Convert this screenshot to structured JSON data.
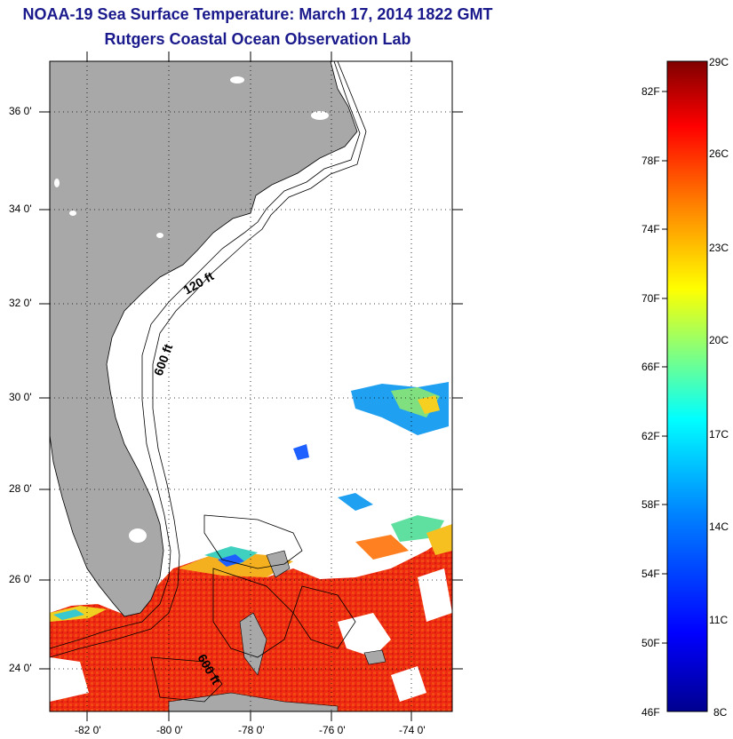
{
  "title": {
    "line1": "NOAA-19 Sea Surface Temperature:  March 17, 2014 1822 GMT",
    "line2": "Rutgers Coastal Ocean Observation Lab"
  },
  "map": {
    "lat_labels": [
      "36 0'",
      "34 0'",
      "32 0'",
      "30 0'",
      "28 0'",
      "26 0'",
      "24 0'"
    ],
    "lon_labels": [
      "-82 0'",
      "-80 0'",
      "-78 0'",
      "-76 0'",
      "-74 0'"
    ],
    "contour_labels": [
      "120 ft",
      "600 ft",
      "600 ft"
    ],
    "land_color": "#a8a8a8",
    "grid": "dotted"
  },
  "colorbar": {
    "f_labels": [
      "82F",
      "78F",
      "74F",
      "70F",
      "66F",
      "62F",
      "58F",
      "54F",
      "50F",
      "46F"
    ],
    "c_labels": [
      "29C",
      "26C",
      "23C",
      "20C",
      "17C",
      "14C",
      "11C",
      "8C"
    ],
    "colors": [
      "#800000",
      "#ff0000",
      "#ff8000",
      "#ffff00",
      "#80ff80",
      "#00ffff",
      "#0080ff",
      "#0000ff",
      "#00008f"
    ]
  }
}
